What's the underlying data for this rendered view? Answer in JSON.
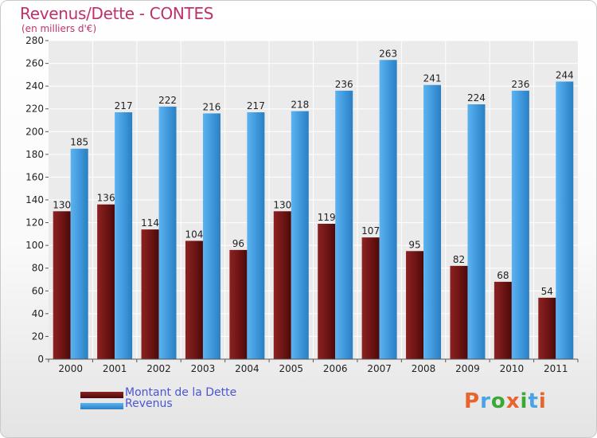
{
  "chart_data": {
    "type": "bar",
    "title": "Revenus/Dette - CONTES",
    "subtitle": "(en milliers d'€)",
    "categories": [
      "2000",
      "2001",
      "2002",
      "2003",
      "2004",
      "2005",
      "2006",
      "2007",
      "2008",
      "2009",
      "2010",
      "2011"
    ],
    "series": [
      {
        "name": "Montant de la Dette",
        "color": "#7a1a1a",
        "values": [
          130,
          136,
          114,
          104,
          96,
          130,
          119,
          107,
          95,
          82,
          68,
          54
        ]
      },
      {
        "name": "Revenus",
        "color": "#4aa3e6",
        "values": [
          185,
          217,
          222,
          216,
          217,
          218,
          236,
          263,
          241,
          224,
          236,
          244
        ]
      }
    ],
    "ylim": [
      0,
      280
    ],
    "ytick_step": 20,
    "grid": true,
    "legend_position": "bottom-left"
  },
  "logo": {
    "text": "Proxiti",
    "colors": [
      "#e8642c",
      "#4aa3e6",
      "#3aaa35",
      "#e8642c",
      "#3aaa35",
      "#4aa3e6",
      "#e8642c"
    ]
  }
}
